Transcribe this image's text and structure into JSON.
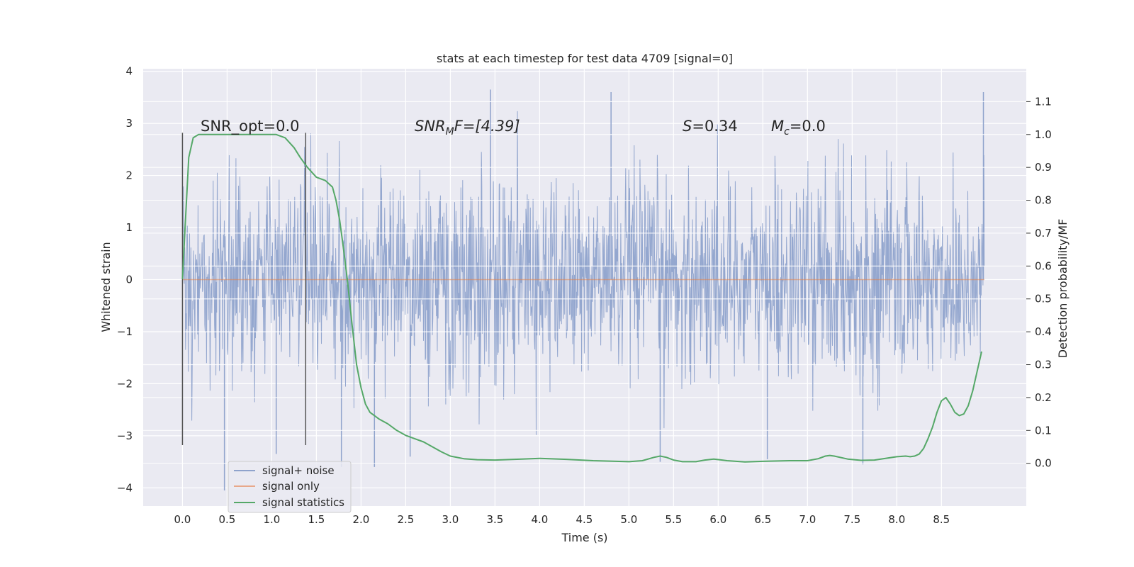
{
  "chart_data": {
    "type": "line",
    "title": "stats at each timestep for test data 4709 [signal=0]",
    "xlabel": "Time (s)",
    "ylabel": "Whitened strain",
    "ylabel_right": "Detection probability/MF",
    "xlim": [
      -0.44,
      9.45
    ],
    "ylim": [
      -4.35,
      4.05
    ],
    "ylim_right": [
      -0.13,
      1.2
    ],
    "x_ticks": [
      "0.0",
      "0.5",
      "1.0",
      "1.5",
      "2.0",
      "2.5",
      "3.0",
      "3.5",
      "4.0",
      "4.5",
      "5.0",
      "5.5",
      "6.0",
      "6.5",
      "7.0",
      "7.5",
      "8.0",
      "8.5"
    ],
    "y_ticks": [
      "4",
      "3",
      "2",
      "1",
      "0",
      "−1",
      "−2",
      "−3",
      "−4"
    ],
    "y_ticks_right": [
      "1.1",
      "1.0",
      "0.9",
      "0.8",
      "0.7",
      "0.6",
      "0.5",
      "0.4",
      "0.3",
      "0.2",
      "0.1",
      "0.0"
    ],
    "grid": true,
    "legend_position": "lower-left",
    "annotations": {
      "snr_opt": "SNR_opt=0.0",
      "snr_mf_sym": "SNR",
      "snr_mf_sub": "M",
      "snr_mf_rest": "F=[4.39]",
      "s_sym": "S",
      "s_rest": "=0.34",
      "mc_sym": "M",
      "mc_sub": "c",
      "mc_rest": "=0.0"
    },
    "vlines_x": [
      0.0,
      1.38
    ],
    "series": [
      {
        "name": "signal+ noise",
        "color": "#8fa3cc",
        "kind": "noise",
        "x_range": [
          0.0,
          8.98
        ],
        "sigma": 0.95,
        "samples": 1800,
        "seed": 4709,
        "outliers": [
          {
            "x": 0.47,
            "y": -4.05
          },
          {
            "x": 2.15,
            "y": -3.6
          },
          {
            "x": 3.45,
            "y": 3.65
          },
          {
            "x": 4.8,
            "y": 3.6
          },
          {
            "x": 7.62,
            "y": -3.55
          },
          {
            "x": 8.97,
            "y": 3.6
          },
          {
            "x": 6.55,
            "y": -3.45
          },
          {
            "x": 1.78,
            "y": -3.6
          },
          {
            "x": 5.35,
            "y": -3.5
          },
          {
            "x": 2.55,
            "y": -3.4
          },
          {
            "x": 1.05,
            "y": -3.35
          }
        ]
      },
      {
        "name": "signal only",
        "color": "#dd8452",
        "kind": "flat",
        "x": [
          0.0,
          8.98
        ],
        "y": [
          0.0,
          0.0
        ]
      },
      {
        "name": "signal statistics",
        "color": "#55a868",
        "kind": "line",
        "axis": "right",
        "x": [
          0.0,
          0.03,
          0.07,
          0.12,
          0.18,
          0.25,
          0.35,
          0.5,
          0.7,
          0.9,
          1.05,
          1.15,
          1.25,
          1.32,
          1.4,
          1.5,
          1.6,
          1.68,
          1.72,
          1.76,
          1.8,
          1.85,
          1.9,
          1.95,
          2.0,
          2.05,
          2.1,
          2.2,
          2.3,
          2.4,
          2.5,
          2.6,
          2.7,
          2.8,
          2.9,
          3.0,
          3.15,
          3.3,
          3.5,
          3.8,
          4.0,
          4.3,
          4.6,
          5.0,
          5.15,
          5.28,
          5.35,
          5.42,
          5.5,
          5.6,
          5.75,
          5.85,
          5.95,
          6.1,
          6.3,
          6.5,
          6.8,
          7.0,
          7.12,
          7.2,
          7.25,
          7.3,
          7.45,
          7.6,
          7.75,
          7.9,
          8.0,
          8.1,
          8.15,
          8.2,
          8.25,
          8.3,
          8.35,
          8.4,
          8.45,
          8.5,
          8.55,
          8.6,
          8.65,
          8.7,
          8.75,
          8.8,
          8.85,
          8.9,
          8.95
        ],
        "y": [
          0.56,
          0.72,
          0.93,
          0.99,
          1.0,
          1.0,
          1.0,
          1.0,
          1.0,
          1.0,
          1.0,
          0.99,
          0.96,
          0.93,
          0.9,
          0.87,
          0.86,
          0.84,
          0.8,
          0.74,
          0.66,
          0.55,
          0.42,
          0.3,
          0.23,
          0.18,
          0.155,
          0.135,
          0.12,
          0.1,
          0.085,
          0.075,
          0.065,
          0.05,
          0.035,
          0.022,
          0.014,
          0.011,
          0.01,
          0.013,
          0.015,
          0.012,
          0.008,
          0.005,
          0.008,
          0.018,
          0.022,
          0.018,
          0.01,
          0.005,
          0.005,
          0.01,
          0.013,
          0.008,
          0.004,
          0.006,
          0.008,
          0.008,
          0.014,
          0.022,
          0.024,
          0.022,
          0.013,
          0.009,
          0.01,
          0.016,
          0.02,
          0.022,
          0.02,
          0.022,
          0.028,
          0.045,
          0.075,
          0.11,
          0.155,
          0.19,
          0.2,
          0.18,
          0.155,
          0.145,
          0.15,
          0.175,
          0.22,
          0.28,
          0.34
        ]
      }
    ]
  }
}
